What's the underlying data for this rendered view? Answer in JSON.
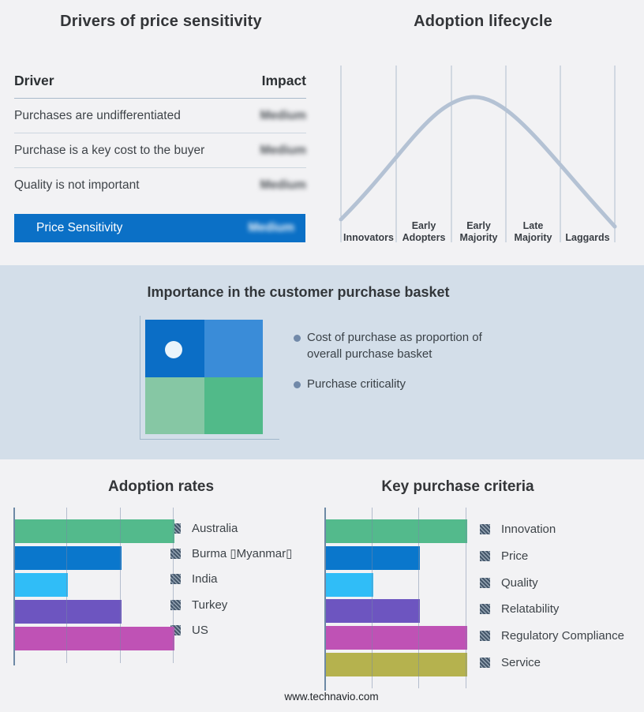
{
  "page": {
    "background": "#f2f2f4",
    "band_background": "#d3dee9",
    "footer": "www.technavio.com"
  },
  "drivers_panel": {
    "title": "Drivers of price sensitivity",
    "columns": {
      "driver": "Driver",
      "impact": "Impact"
    },
    "rows": [
      {
        "driver": "Purchases are undifferentiated",
        "impact": "Medium"
      },
      {
        "driver": "Purchase is a key cost to the buyer",
        "impact": "Medium"
      },
      {
        "driver": "Quality is not important",
        "impact": "Medium"
      }
    ],
    "impact_values_blurred": true,
    "highlight": {
      "driver": "Price Sensitivity",
      "impact": "Medium",
      "color": "#0b70c6"
    }
  },
  "lifecycle_panel": {
    "title": "Adoption lifecycle",
    "stages": [
      {
        "line1": "Innovators",
        "line2": ""
      },
      {
        "line1": "Early",
        "line2": "Adopters"
      },
      {
        "line1": "Early",
        "line2": "Majority"
      },
      {
        "line1": "Late",
        "line2": "Majority"
      },
      {
        "line1": "Laggards",
        "line2": ""
      }
    ],
    "curve_color": "#b4c2d4",
    "divider_color": "#b0bdce"
  },
  "basket_panel": {
    "title": "Importance in the customer purchase basket",
    "bullets": [
      "Cost of purchase as proportion of overall purchase basket",
      "Purchase criticality"
    ],
    "bullet_color": "#7189a9",
    "quadrant_colors": {
      "top_left": "#0b6ec6",
      "top_right": "#3a8cd8",
      "bottom_left": "#86c7a4",
      "bottom_right": "#51ba89"
    },
    "marker": {
      "quadrant": "top_left",
      "color": "#eaf4fb"
    }
  },
  "chart_data": [
    {
      "type": "bar",
      "orientation": "horizontal",
      "title": "Adoption rates",
      "categories": [
        "Australia",
        "Burma ▯Myanmar▯",
        "India",
        "Turkey",
        "US"
      ],
      "values": [
        3,
        2,
        1,
        2,
        3
      ],
      "xlim": [
        0,
        3
      ],
      "gridlines": [
        1,
        2,
        3
      ],
      "grid": true,
      "colors": [
        "#53ba8c",
        "#0a77cc",
        "#30bdf7",
        "#6d55c0",
        "#bf52b5"
      ],
      "legend_position": "right",
      "legend_marker": "hatched-square"
    },
    {
      "type": "bar",
      "orientation": "horizontal",
      "title": "Key purchase criteria",
      "categories": [
        "Innovation",
        "Price",
        "Quality",
        "Relatability",
        "Regulatory Compliance",
        "Service"
      ],
      "values": [
        3,
        2,
        1,
        2,
        3,
        3
      ],
      "xlim": [
        0,
        3
      ],
      "gridlines": [
        1,
        2,
        3
      ],
      "grid": true,
      "colors": [
        "#53ba8c",
        "#0a77cc",
        "#30bdf7",
        "#6d55c0",
        "#bf52b5",
        "#b5b24e"
      ],
      "legend_position": "right",
      "legend_marker": "hatched-square"
    }
  ]
}
